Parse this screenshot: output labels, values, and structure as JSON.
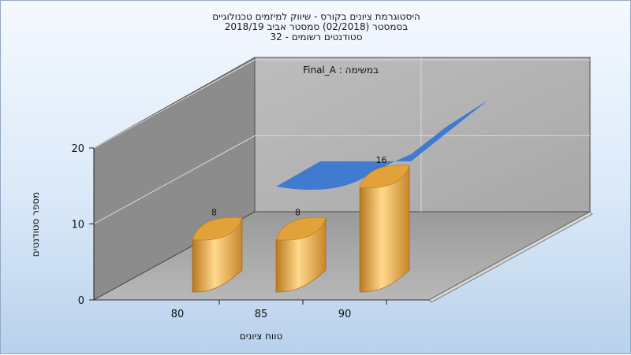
{
  "chart_data": {
    "type": "bar",
    "title_lines": [
      "היסטוגרמת ציונים בקורס - שיווק למיזמים טכנולוגיים",
      "בסמסטר  (02/2018)  סמסטר אביב 2018/19",
      "סטודנטים רשומים - 32"
    ],
    "annotation": "במשימה : Final_A",
    "xlabel": "טווח ציונים",
    "ylabel": "מספר סטודנטים",
    "categories": [
      "80",
      "85",
      "90"
    ],
    "values": [
      8,
      8,
      16
    ],
    "y_ticks": [
      "0",
      "10",
      "20"
    ],
    "ylim": [
      0,
      20
    ],
    "bar_color": "#e6a43c",
    "curve_color": "#3a78d2",
    "grid": true
  }
}
